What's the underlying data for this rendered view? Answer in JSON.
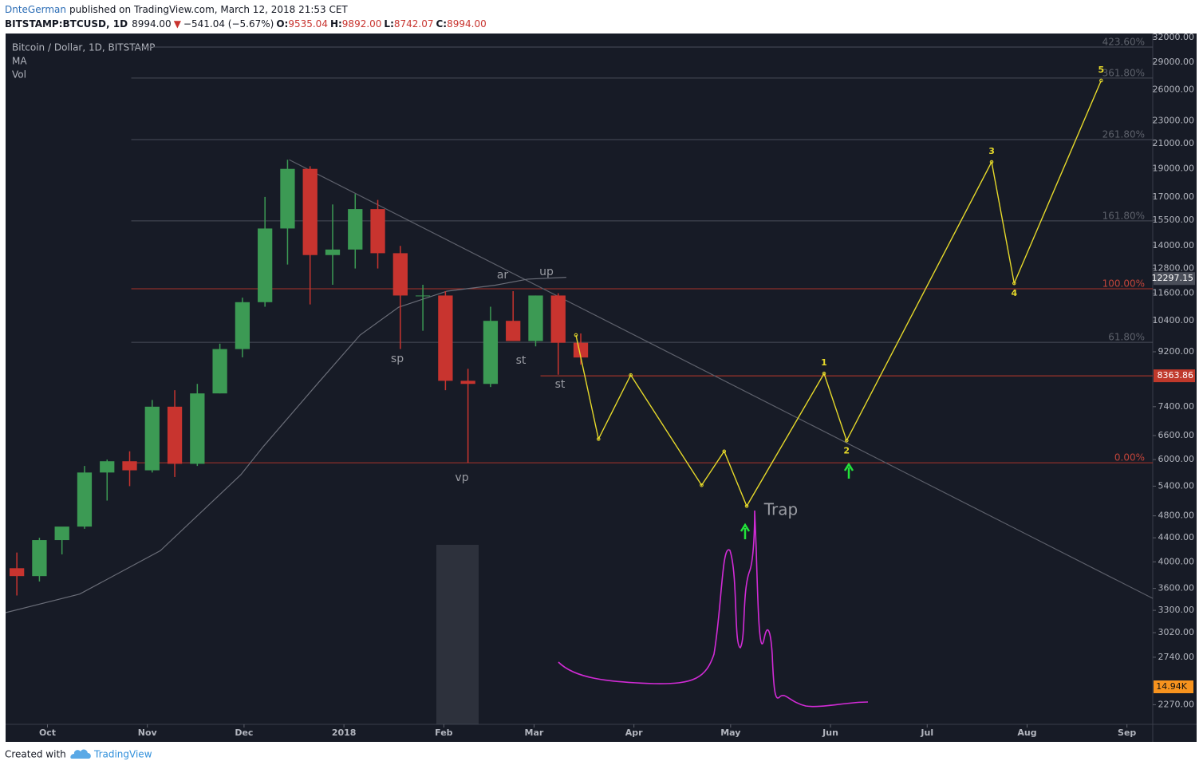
{
  "header": {
    "author": "DnteGerman",
    "published": "published on TradingView.com, March 12, 2018 21:53 CET",
    "symbol": "BITSTAMP:BTCUSD, 1D",
    "last": "8994.00",
    "arrow": "▼",
    "change": "−541.04 (−5.67%)",
    "ohlc": [
      {
        "label": "O:",
        "value": "9535.04"
      },
      {
        "label": "H:",
        "value": "9892.00"
      },
      {
        "label": "L:",
        "value": "8742.07"
      },
      {
        "label": "C:",
        "value": "8994.00"
      }
    ]
  },
  "footer": {
    "created": "Created with",
    "brand": "TradingView"
  },
  "chart_data": {
    "type": "candlestick",
    "title": "Bitcoin / Dollar, 1D, BITSTAMP",
    "indicators": [
      "MA",
      "Vol"
    ],
    "x": [
      "2017-09-18",
      "2017-09-25",
      "2017-10-02",
      "2017-10-09",
      "2017-10-16",
      "2017-10-23",
      "2017-10-30",
      "2017-11-06",
      "2017-11-13",
      "2017-11-20",
      "2017-11-27",
      "2017-12-04",
      "2017-12-11",
      "2017-12-18",
      "2017-12-25",
      "2018-01-01",
      "2018-01-08",
      "2018-01-15",
      "2018-01-22",
      "2018-01-29",
      "2018-02-05",
      "2018-02-12",
      "2018-02-19",
      "2018-02-26",
      "2018-03-05",
      "2018-03-12"
    ],
    "open": [
      3900,
      3780,
      4360,
      4600,
      5700,
      5960,
      5750,
      7400,
      5900,
      7800,
      9300,
      11200,
      15000,
      19000,
      13500,
      13800,
      16200,
      13600,
      11500,
      11500,
      8200,
      8100,
      10400,
      9600,
      11500,
      9535.04
    ],
    "high": [
      4150,
      4400,
      4480,
      5850,
      6000,
      6200,
      7600,
      7900,
      8100,
      9500,
      11400,
      17000,
      19700,
      19200,
      16500,
      17200,
      16800,
      14000,
      12000,
      11700,
      8600,
      11000,
      11700,
      11500,
      11600,
      9892
    ],
    "low": [
      3500,
      3700,
      4120,
      4560,
      5100,
      5400,
      5700,
      5600,
      5850,
      7800,
      9000,
      11000,
      13000,
      11100,
      12000,
      12800,
      12800,
      9300,
      10000,
      7900,
      5920,
      8000,
      9600,
      9400,
      8400,
      8742.07
    ],
    "close": [
      3780,
      4360,
      4600,
      5700,
      5960,
      5750,
      7400,
      5900,
      7800,
      9300,
      11200,
      15000,
      19000,
      13500,
      13800,
      16200,
      13600,
      11500,
      11500,
      8200,
      8100,
      10400,
      9600,
      11500,
      9535,
      8994
    ],
    "up_color": "#3c9a54",
    "down_color": "#c8342f",
    "ma": {
      "name": "MA",
      "color": "#6a6d78",
      "x": [
        "2017-09-18",
        "2017-10-11",
        "2017-11-05",
        "2017-11-30",
        "2017-12-07",
        "2017-12-24",
        "2018-01-06",
        "2018-01-18",
        "2018-02-02",
        "2018-02-17",
        "2018-02-27",
        "2018-03-11"
      ],
      "values": [
        3270,
        3520,
        4180,
        5650,
        6320,
        8130,
        9830,
        10980,
        11700,
        11980,
        12270,
        12360
      ]
    },
    "projection": {
      "color": "#e6d92a",
      "x": [
        "2018-03-14",
        "2018-03-21",
        "2018-03-31",
        "2018-04-22",
        "2018-04-29",
        "2018-05-06",
        "2018-05-30",
        "2018-06-06",
        "2018-07-21",
        "2018-07-28",
        "2018-08-24"
      ],
      "values": [
        9830,
        6510,
        8390,
        5420,
        6200,
        4990,
        8440,
        6470,
        19530,
        12070,
        26970
      ],
      "wave_labels": [
        1,
        2,
        3,
        4,
        5
      ]
    },
    "trendline": {
      "color": "#5d606b",
      "x": [
        "2017-12-15",
        "2018-09-09"
      ],
      "values": [
        19700,
        3460
      ]
    },
    "levels_from": "2017-10-27",
    "levels": [
      {
        "label": "423.60%",
        "price": 30800,
        "color": "#4a4e59"
      },
      {
        "label": "361.80%",
        "price": 27230,
        "color": "#4a4e59"
      },
      {
        "label": "261.80%",
        "price": 21340,
        "color": "#4a4e59"
      },
      {
        "label": "161.80%",
        "price": 15460,
        "color": "#4a4e59"
      },
      {
        "label": "100.00%",
        "price": 11810,
        "color": "#a8332b"
      },
      {
        "label": "61.80%",
        "price": 9550,
        "color": "#4a4e59"
      },
      {
        "label": "0.00%",
        "price": 5925,
        "color": "#a8332b"
      }
    ],
    "price_line": {
      "price": 8363.86,
      "from": "2018-03-03",
      "color": "#c0392b"
    },
    "ma_last": 12297.15,
    "volume_label": "14.94K",
    "annotations": [
      "ar",
      "up",
      "sp",
      "st",
      "st",
      "vp",
      "Trap"
    ],
    "log_scale": true,
    "ylim": [
      2100,
      32500
    ],
    "yticks": [
      {
        "value": 32000,
        "label": "32000.00"
      },
      {
        "value": 29000,
        "label": "29000.00"
      },
      {
        "value": 26000,
        "label": "26000.00"
      },
      {
        "value": 23000,
        "label": "23000.00"
      },
      {
        "value": 21000,
        "label": "21000.00"
      },
      {
        "value": 19000,
        "label": "19000.00"
      },
      {
        "value": 17000,
        "label": "17000.00"
      },
      {
        "value": 15500,
        "label": "15500.00"
      },
      {
        "value": 14000,
        "label": "14000.00"
      },
      {
        "value": 12800,
        "label": "12800.00"
      },
      {
        "value": 11600,
        "label": "11600.00"
      },
      {
        "value": 10400,
        "label": "10400.00"
      },
      {
        "value": 9200,
        "label": "9200.00"
      },
      {
        "value": 7400,
        "label": "7400.00"
      },
      {
        "value": 6600,
        "label": "6600.00"
      },
      {
        "value": 6000,
        "label": "6000.00"
      },
      {
        "value": 5400,
        "label": "5400.00"
      },
      {
        "value": 4800,
        "label": "4800.00"
      },
      {
        "value": 4400,
        "label": "4400.00"
      },
      {
        "value": 4000,
        "label": "4000.00"
      },
      {
        "value": 3600,
        "label": "3600.00"
      },
      {
        "value": 3300,
        "label": "3300.00"
      },
      {
        "value": 3020,
        "label": "3020.00"
      },
      {
        "value": 2740,
        "label": "2740.00"
      },
      {
        "value": 2270,
        "label": "2270.00"
      }
    ],
    "xlim": [
      "2017-09-18",
      "2018-09-09"
    ],
    "xticks": [
      {
        "value": "2017-10-01",
        "label": "Oct"
      },
      {
        "value": "2017-11-01",
        "label": "Nov"
      },
      {
        "value": "2017-12-01",
        "label": "Dec"
      },
      {
        "value": "2018-01-01",
        "label": "2018"
      },
      {
        "value": "2018-02-01",
        "label": "Feb"
      },
      {
        "value": "2018-03-01",
        "label": "Mar"
      },
      {
        "value": "2018-04-01",
        "label": "Apr"
      },
      {
        "value": "2018-05-01",
        "label": "May"
      },
      {
        "value": "2018-06-01",
        "label": "Jun"
      },
      {
        "value": "2018-07-01",
        "label": "Jul"
      },
      {
        "value": "2018-08-01",
        "label": "Aug"
      },
      {
        "value": "2018-09-01",
        "label": "Sep"
      }
    ]
  }
}
